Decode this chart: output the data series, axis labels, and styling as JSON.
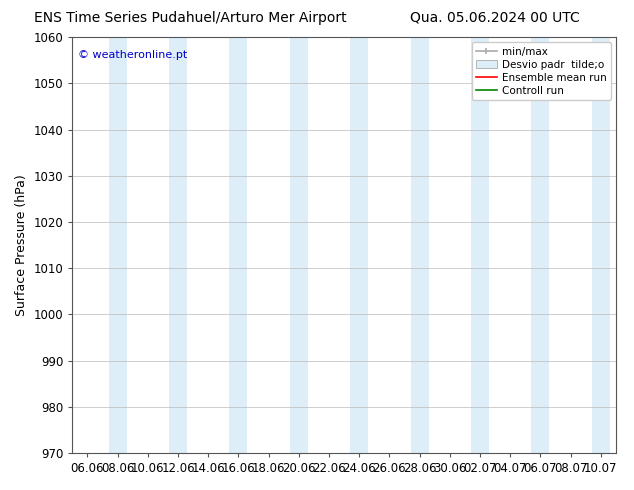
{
  "title_left": "ENS Time Series Pudahuel/Arturo Mer Airport",
  "title_right": "Qua. 05.06.2024 00 UTC",
  "ylabel": "Surface Pressure (hPa)",
  "ylim": [
    970,
    1060
  ],
  "yticks": [
    970,
    980,
    990,
    1000,
    1010,
    1020,
    1030,
    1040,
    1050,
    1060
  ],
  "xtick_labels": [
    "06.06",
    "08.06",
    "10.06",
    "12.06",
    "14.06",
    "16.06",
    "18.06",
    "20.06",
    "22.06",
    "24.06",
    "26.06",
    "28.06",
    "30.06",
    "02.07",
    "04.07",
    "06.07",
    "08.07",
    "10.07"
  ],
  "watermark": "© weatheronline.pt",
  "watermark_color": "#0000cc",
  "background_color": "#ffffff",
  "plot_bg_color": "#ffffff",
  "shaded_color": "#ddeef8",
  "shaded_positions": [
    1,
    3,
    5,
    7,
    9,
    11,
    13,
    15,
    17
  ],
  "legend_entries": [
    "min/max",
    "Desvio padr  tilde;o",
    "Ensemble mean run",
    "Controll run"
  ],
  "legend_colors_line": [
    "#aaaaaa",
    "#bbccdd",
    "#ff0000",
    "#008800"
  ],
  "title_fontsize": 10,
  "axis_label_fontsize": 9,
  "tick_fontsize": 8.5,
  "legend_fontsize": 7.5
}
